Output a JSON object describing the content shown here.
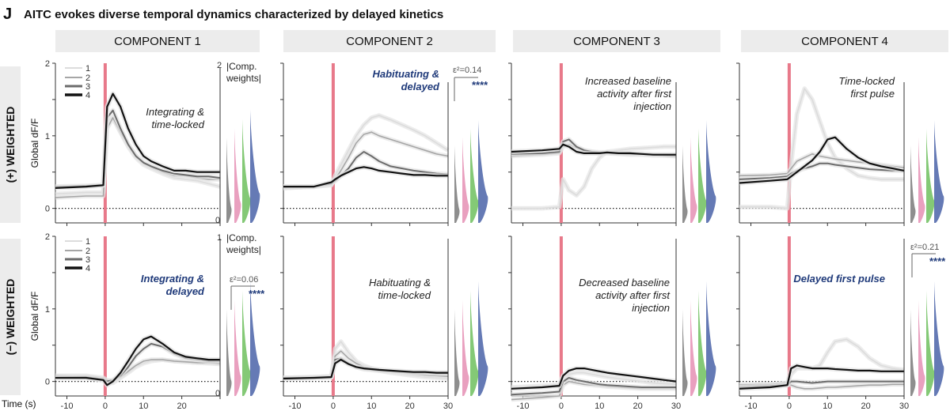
{
  "panel_letter": "J",
  "figure_title": "AITC evokes diverse temporal dynamics characterized by delayed kinetics",
  "row_labels": [
    "(+) WEIGHTED",
    "(−) WEIGHTED"
  ],
  "x_axis_label": "Time (s)",
  "y_axis_label": "Global dF/F",
  "weights_label_line1": "|Comp.",
  "weights_label_line2": "weights|",
  "legend": [
    "1",
    "2",
    "3",
    "4"
  ],
  "colors": {
    "series": [
      "#dcdcdc",
      "#a6a6a6",
      "#6b6b6b",
      "#111111"
    ],
    "stimulus": "#e8798a",
    "header_bg": "#ececec",
    "emphasis_text": "#1f3a7a",
    "distributions": [
      "#7a7a7a",
      "#e58fb4",
      "#6fbf5e",
      "#4a63a8"
    ]
  },
  "components": [
    {
      "header": "COMPONENT 1",
      "xlim": [
        -13,
        30
      ],
      "xticks": [
        "-10",
        "0",
        "10",
        "20"
      ],
      "ylim": [
        -0.2,
        2
      ],
      "yticks": [
        "0",
        "1",
        "2"
      ],
      "weight_ticks_top": [
        "0",
        "2"
      ],
      "weight_ticks_bottom": [
        "0",
        "1"
      ]
    },
    {
      "header": "COMPONENT 2",
      "xlim": [
        -13,
        30
      ],
      "xticks": [
        "-10",
        "0",
        "10",
        "20",
        "30"
      ]
    },
    {
      "header": "COMPONENT 3",
      "xlim": [
        -13,
        30
      ],
      "xticks": [
        "-10",
        "0",
        "10",
        "20",
        "30"
      ]
    },
    {
      "header": "COMPONENT 4",
      "xlim": [
        -13,
        30
      ],
      "xticks": [
        "-10",
        "0",
        "10",
        "20",
        "30"
      ]
    }
  ],
  "annotations": [
    {
      "row": 0,
      "col": 0,
      "lines": [
        "Integrating &",
        "time-locked"
      ],
      "bold_blue": false
    },
    {
      "row": 0,
      "col": 1,
      "lines": [
        "Habituating &",
        "delayed"
      ],
      "bold_blue": true
    },
    {
      "row": 0,
      "col": 2,
      "lines": [
        "Increased baseline",
        "activity after first",
        "injection"
      ],
      "bold_blue": false
    },
    {
      "row": 0,
      "col": 3,
      "lines": [
        "Time-locked",
        "first pulse"
      ],
      "bold_blue": false
    },
    {
      "row": 1,
      "col": 0,
      "lines": [
        "Integrating &",
        "delayed"
      ],
      "bold_blue": true
    },
    {
      "row": 1,
      "col": 1,
      "lines": [
        "Habituating &",
        "time-locked"
      ],
      "bold_blue": false
    },
    {
      "row": 1,
      "col": 2,
      "lines": [
        "Decreased baseline",
        "activity after first",
        "injection"
      ],
      "bold_blue": false
    },
    {
      "row": 1,
      "col": 3,
      "lines": [
        "Delayed first pulse"
      ],
      "bold_blue": true
    }
  ],
  "effect_sizes": [
    {
      "row": 0,
      "col": 1,
      "epsilon": "ε²=0.14",
      "stars": "****"
    },
    {
      "row": 1,
      "col": 0,
      "epsilon": "ε²=0.06",
      "stars": "****"
    },
    {
      "row": 1,
      "col": 3,
      "epsilon": "ε²=0.21",
      "stars": "****"
    }
  ],
  "chart_data": [
    {
      "type": "line",
      "row": "(+) WEIGHTED",
      "component": "COMPONENT 1",
      "x": [
        -13,
        -5,
        -0.5,
        0.5,
        2,
        4,
        6,
        8,
        10,
        12,
        15,
        18,
        21,
        24,
        27,
        30
      ],
      "series": [
        {
          "name": "1",
          "values": [
            0.2,
            0.22,
            0.22,
            1.2,
            1.25,
            1.05,
            0.85,
            0.7,
            0.6,
            0.55,
            0.48,
            0.42,
            0.4,
            0.38,
            0.34,
            0.3
          ]
        },
        {
          "name": "2",
          "values": [
            0.15,
            0.17,
            0.17,
            1.1,
            1.25,
            1.05,
            0.88,
            0.73,
            0.62,
            0.57,
            0.5,
            0.45,
            0.45,
            0.42,
            0.4,
            0.4
          ]
        },
        {
          "name": "3",
          "values": [
            0.3,
            0.31,
            0.32,
            1.25,
            1.35,
            1.1,
            0.88,
            0.72,
            0.63,
            0.58,
            0.52,
            0.48,
            0.46,
            0.44,
            0.44,
            0.42
          ]
        },
        {
          "name": "4",
          "values": [
            0.28,
            0.3,
            0.32,
            1.4,
            1.58,
            1.4,
            1.1,
            0.88,
            0.72,
            0.65,
            0.58,
            0.52,
            0.52,
            0.5,
            0.5,
            0.5
          ]
        }
      ]
    },
    {
      "type": "line",
      "row": "(+) WEIGHTED",
      "component": "COMPONENT 2",
      "x": [
        -13,
        -5,
        -0.5,
        0.5,
        2,
        4,
        6,
        8,
        10,
        12,
        15,
        18,
        21,
        24,
        27,
        30
      ],
      "series": [
        {
          "name": "1",
          "values": [
            0.28,
            0.3,
            0.32,
            0.45,
            0.6,
            0.8,
            1.0,
            1.15,
            1.25,
            1.28,
            1.22,
            1.15,
            1.08,
            1.0,
            0.9,
            0.8
          ]
        },
        {
          "name": "2",
          "values": [
            0.28,
            0.3,
            0.33,
            0.4,
            0.52,
            0.7,
            0.9,
            1.02,
            1.05,
            1.0,
            0.95,
            0.9,
            0.85,
            0.8,
            0.75,
            0.72
          ]
        },
        {
          "name": "3",
          "values": [
            0.3,
            0.3,
            0.34,
            0.38,
            0.45,
            0.55,
            0.7,
            0.78,
            0.72,
            0.65,
            0.58,
            0.55,
            0.52,
            0.5,
            0.48,
            0.47
          ]
        },
        {
          "name": "4",
          "values": [
            0.3,
            0.3,
            0.36,
            0.4,
            0.45,
            0.5,
            0.55,
            0.57,
            0.55,
            0.52,
            0.5,
            0.48,
            0.46,
            0.46,
            0.45,
            0.45
          ]
        }
      ]
    },
    {
      "type": "line",
      "row": "(+) WEIGHTED",
      "component": "COMPONENT 3",
      "x": [
        -13,
        -5,
        -0.5,
        0.5,
        2,
        4,
        6,
        8,
        10,
        12,
        15,
        18,
        21,
        24,
        27,
        30
      ],
      "series": [
        {
          "name": "1",
          "values": [
            0.0,
            0.0,
            0.02,
            0.4,
            0.25,
            0.18,
            0.3,
            0.55,
            0.7,
            0.78,
            0.8,
            0.82,
            0.83,
            0.84,
            0.85,
            0.85
          ]
        },
        {
          "name": "2",
          "values": [
            0.72,
            0.74,
            0.76,
            0.85,
            0.88,
            0.83,
            0.8,
            0.78,
            0.76,
            0.76,
            0.75,
            0.74,
            0.74,
            0.73,
            0.73,
            0.72
          ]
        },
        {
          "name": "3",
          "values": [
            0.75,
            0.76,
            0.78,
            0.92,
            0.95,
            0.85,
            0.8,
            0.78,
            0.77,
            0.77,
            0.76,
            0.75,
            0.75,
            0.74,
            0.73,
            0.72
          ]
        },
        {
          "name": "4",
          "values": [
            0.78,
            0.8,
            0.82,
            0.88,
            0.85,
            0.78,
            0.76,
            0.76,
            0.76,
            0.77,
            0.76,
            0.76,
            0.75,
            0.74,
            0.74,
            0.74
          ]
        }
      ]
    },
    {
      "type": "line",
      "row": "(+) WEIGHTED",
      "component": "COMPONENT 4",
      "x": [
        -13,
        -5,
        -0.5,
        0.5,
        2,
        4,
        6,
        8,
        10,
        12,
        15,
        18,
        21,
        24,
        27,
        30
      ],
      "series": [
        {
          "name": "1",
          "values": [
            0.02,
            0.02,
            0.0,
            0.6,
            1.3,
            1.65,
            1.5,
            1.2,
            0.9,
            0.7,
            0.55,
            0.45,
            0.42,
            0.4,
            0.4,
            0.4
          ]
        },
        {
          "name": "2",
          "values": [
            0.45,
            0.46,
            0.48,
            0.55,
            0.65,
            0.7,
            0.75,
            0.72,
            0.7,
            0.68,
            0.66,
            0.64,
            0.62,
            0.6,
            0.58,
            0.56
          ]
        },
        {
          "name": "3",
          "values": [
            0.4,
            0.42,
            0.44,
            0.48,
            0.52,
            0.55,
            0.58,
            0.62,
            0.62,
            0.6,
            0.58,
            0.56,
            0.54,
            0.53,
            0.52,
            0.52
          ]
        },
        {
          "name": "4",
          "values": [
            0.35,
            0.38,
            0.4,
            0.44,
            0.5,
            0.58,
            0.66,
            0.78,
            0.95,
            0.98,
            0.82,
            0.7,
            0.62,
            0.58,
            0.55,
            0.52
          ]
        }
      ]
    },
    {
      "type": "line",
      "row": "(−) WEIGHTED",
      "component": "COMPONENT 1",
      "x": [
        -13,
        -5,
        -0.5,
        0.5,
        2,
        4,
        6,
        8,
        10,
        12,
        15,
        18,
        21,
        24,
        27,
        30
      ],
      "series": [
        {
          "name": "1",
          "values": [
            0.05,
            0.05,
            0.02,
            0.0,
            -0.02,
            0.05,
            0.12,
            0.2,
            0.25,
            0.28,
            0.3,
            0.28,
            0.27,
            0.26,
            0.25,
            0.24
          ]
        },
        {
          "name": "2",
          "values": [
            0.08,
            0.08,
            0.05,
            0.02,
            0.0,
            0.06,
            0.14,
            0.22,
            0.28,
            0.3,
            0.3,
            0.28,
            0.27,
            0.26,
            0.26,
            0.25
          ]
        },
        {
          "name": "3",
          "values": [
            0.05,
            0.06,
            0.03,
            0.0,
            0.02,
            0.08,
            0.2,
            0.35,
            0.45,
            0.52,
            0.48,
            0.38,
            0.32,
            0.3,
            0.28,
            0.28
          ]
        },
        {
          "name": "4",
          "values": [
            0.05,
            0.05,
            0.02,
            -0.05,
            0.0,
            0.12,
            0.28,
            0.45,
            0.58,
            0.62,
            0.52,
            0.4,
            0.34,
            0.32,
            0.3,
            0.3
          ]
        }
      ]
    },
    {
      "type": "line",
      "row": "(−) WEIGHTED",
      "component": "COMPONENT 2",
      "x": [
        -13,
        -5,
        -0.5,
        0.5,
        2,
        4,
        6,
        8,
        10,
        12,
        15,
        18,
        21,
        24,
        27,
        30
      ],
      "series": [
        {
          "name": "1",
          "values": [
            0.05,
            0.06,
            0.07,
            0.45,
            0.55,
            0.4,
            0.28,
            0.22,
            0.18,
            0.15,
            0.12,
            0.1,
            0.08,
            0.06,
            0.05,
            0.04
          ]
        },
        {
          "name": "2",
          "values": [
            0.05,
            0.06,
            0.07,
            0.35,
            0.42,
            0.32,
            0.25,
            0.2,
            0.18,
            0.16,
            0.14,
            0.12,
            0.1,
            0.09,
            0.08,
            0.07
          ]
        },
        {
          "name": "3",
          "values": [
            0.05,
            0.05,
            0.06,
            0.3,
            0.32,
            0.25,
            0.2,
            0.17,
            0.16,
            0.15,
            0.14,
            0.13,
            0.12,
            0.12,
            0.11,
            0.11
          ]
        },
        {
          "name": "4",
          "values": [
            0.04,
            0.05,
            0.06,
            0.25,
            0.3,
            0.24,
            0.2,
            0.18,
            0.17,
            0.16,
            0.15,
            0.14,
            0.13,
            0.13,
            0.12,
            0.12
          ]
        }
      ]
    },
    {
      "type": "line",
      "row": "(−) WEIGHTED",
      "component": "COMPONENT 3",
      "x": [
        -13,
        -5,
        -0.5,
        0.5,
        2,
        4,
        6,
        8,
        10,
        12,
        15,
        18,
        21,
        24,
        27,
        30
      ],
      "series": [
        {
          "name": "1",
          "values": [
            -0.08,
            -0.06,
            -0.05,
            0.05,
            0.1,
            0.12,
            0.12,
            0.1,
            0.08,
            0.06,
            0.04,
            0.02,
            0.0,
            -0.02,
            -0.03,
            -0.04
          ]
        },
        {
          "name": "2",
          "values": [
            -0.25,
            -0.22,
            -0.2,
            -0.05,
            0.0,
            -0.02,
            -0.04,
            -0.05,
            -0.06,
            -0.07,
            -0.08,
            -0.09,
            -0.1,
            -0.1,
            -0.1,
            -0.1
          ]
        },
        {
          "name": "3",
          "values": [
            -0.18,
            -0.16,
            -0.14,
            0.0,
            0.05,
            0.02,
            0.0,
            -0.02,
            -0.04,
            -0.05,
            -0.06,
            -0.07,
            -0.08,
            -0.08,
            -0.08,
            -0.08
          ]
        },
        {
          "name": "4",
          "values": [
            -0.1,
            -0.08,
            -0.06,
            0.08,
            0.15,
            0.18,
            0.18,
            0.16,
            0.14,
            0.12,
            0.1,
            0.08,
            0.06,
            0.04,
            0.02,
            0.0
          ]
        }
      ]
    },
    {
      "type": "line",
      "row": "(−) WEIGHTED",
      "component": "COMPONENT 4",
      "x": [
        -13,
        -5,
        -0.5,
        0.5,
        2,
        4,
        6,
        8,
        10,
        12,
        15,
        18,
        21,
        24,
        27,
        30
      ],
      "series": [
        {
          "name": "1",
          "values": [
            -0.05,
            -0.04,
            -0.02,
            0.1,
            0.18,
            0.18,
            0.18,
            0.22,
            0.4,
            0.55,
            0.58,
            0.48,
            0.32,
            0.22,
            0.18,
            0.16
          ]
        },
        {
          "name": "2",
          "values": [
            -0.05,
            -0.04,
            -0.02,
            -0.05,
            -0.08,
            -0.1,
            -0.1,
            -0.09,
            -0.08,
            -0.08,
            -0.07,
            -0.06,
            -0.05,
            -0.05,
            -0.04,
            -0.04
          ]
        },
        {
          "name": "3",
          "values": [
            -0.08,
            -0.06,
            -0.05,
            0.0,
            0.0,
            -0.01,
            -0.02,
            -0.01,
            0.0,
            0.0,
            0.0,
            0.0,
            0.0,
            0.0,
            0.0,
            0.0
          ]
        },
        {
          "name": "4",
          "values": [
            -0.1,
            -0.08,
            -0.05,
            0.18,
            0.22,
            0.2,
            0.18,
            0.18,
            0.18,
            0.17,
            0.16,
            0.15,
            0.15,
            0.14,
            0.14,
            0.14
          ]
        }
      ]
    }
  ]
}
